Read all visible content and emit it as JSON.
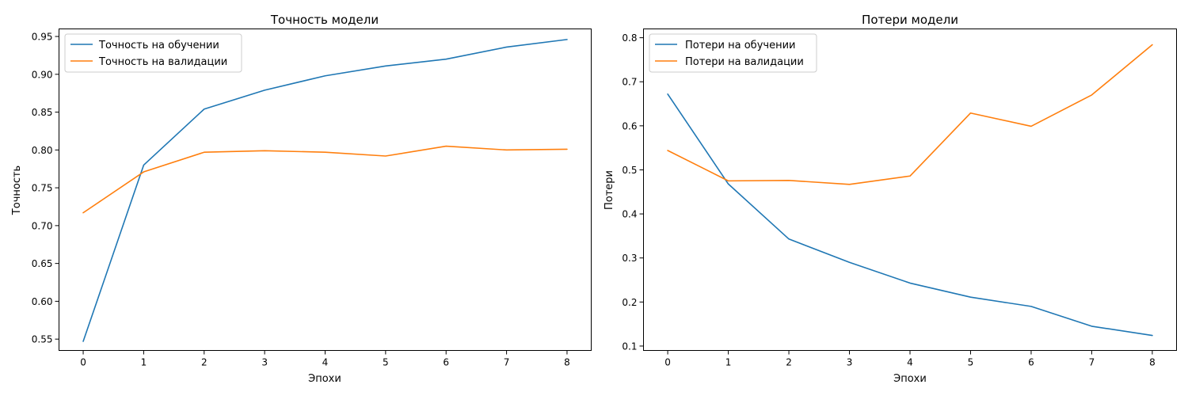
{
  "chart_data": [
    {
      "type": "line",
      "title": "Точность модели",
      "xlabel": "Эпохи",
      "ylabel": "Точность",
      "x": [
        0,
        1,
        2,
        3,
        4,
        5,
        6,
        7,
        8
      ],
      "xlim": [
        -0.4,
        8.4
      ],
      "ylim": [
        0.535,
        0.96
      ],
      "xticks": [
        0,
        1,
        2,
        3,
        4,
        5,
        6,
        7,
        8
      ],
      "yticks": [
        0.55,
        0.6,
        0.65,
        0.7,
        0.75,
        0.8,
        0.85,
        0.9,
        0.95
      ],
      "ytick_labels": [
        "0.55",
        "0.60",
        "0.65",
        "0.70",
        "0.75",
        "0.80",
        "0.85",
        "0.90",
        "0.95"
      ],
      "grid": false,
      "legend_position": "top-left",
      "series": [
        {
          "name": "Точность на обучении",
          "color": "#1f77b4",
          "values": [
            0.547,
            0.78,
            0.854,
            0.879,
            0.898,
            0.911,
            0.92,
            0.936,
            0.946
          ]
        },
        {
          "name": "Точность на валидации",
          "color": "#ff7f0e",
          "values": [
            0.717,
            0.771,
            0.797,
            0.799,
            0.797,
            0.792,
            0.805,
            0.8,
            0.801
          ]
        }
      ]
    },
    {
      "type": "line",
      "title": "Потери модели",
      "xlabel": "Эпохи",
      "ylabel": "Потери",
      "x": [
        0,
        1,
        2,
        3,
        4,
        5,
        6,
        7,
        8
      ],
      "xlim": [
        -0.4,
        8.4
      ],
      "ylim": [
        0.09,
        0.82
      ],
      "xticks": [
        0,
        1,
        2,
        3,
        4,
        5,
        6,
        7,
        8
      ],
      "yticks": [
        0.1,
        0.2,
        0.3,
        0.4,
        0.5,
        0.6,
        0.7,
        0.8
      ],
      "ytick_labels": [
        "0.1",
        "0.2",
        "0.3",
        "0.4",
        "0.5",
        "0.6",
        "0.7",
        "0.8"
      ],
      "grid": false,
      "legend_position": "top-left",
      "series": [
        {
          "name": "Потери на обучении",
          "color": "#1f77b4",
          "values": [
            0.672,
            0.468,
            0.343,
            0.29,
            0.243,
            0.211,
            0.19,
            0.145,
            0.124
          ]
        },
        {
          "name": "Потери на валидации",
          "color": "#ff7f0e",
          "values": [
            0.544,
            0.475,
            0.476,
            0.467,
            0.486,
            0.629,
            0.599,
            0.67,
            0.784
          ]
        }
      ]
    }
  ]
}
